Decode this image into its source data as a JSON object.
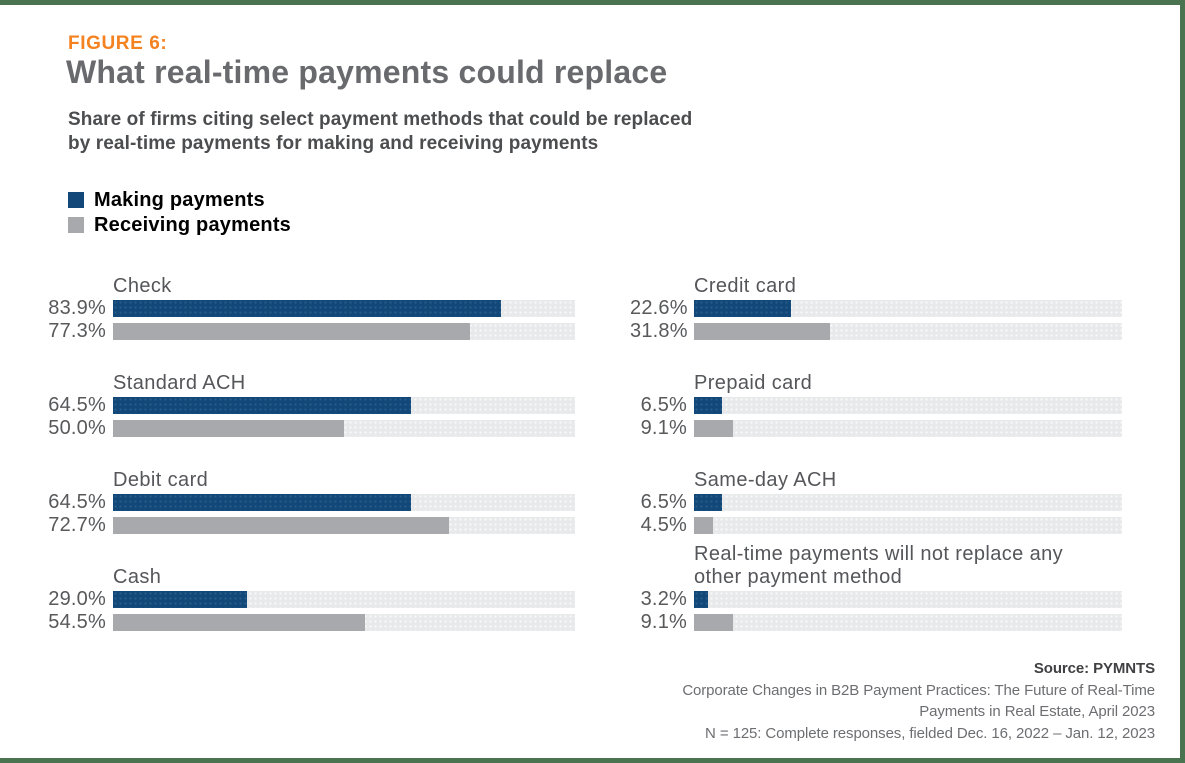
{
  "figure_label": "FIGURE 6:",
  "title": "What real-time payments could replace",
  "subtitle": "Share of firms citing select payment methods that could be replaced\nby real-time payments for making and receiving payments",
  "legend": [
    {
      "label": "Making payments",
      "color": "#114879"
    },
    {
      "label": "Receiving payments",
      "color": "#a7a9ac"
    }
  ],
  "chart_data": {
    "type": "bar",
    "orientation": "horizontal",
    "unit": "%",
    "value_range": [
      0,
      100
    ],
    "series_names": [
      "Making payments",
      "Receiving payments"
    ],
    "series_colors": {
      "making": "#114879",
      "receiving": "#a7a9ac"
    },
    "columns": [
      {
        "groups": [
          {
            "category": "Check",
            "making": 83.9,
            "receiving": 77.3
          },
          {
            "category": "Standard ACH",
            "making": 64.5,
            "receiving": 50.0
          },
          {
            "category": "Debit card",
            "making": 64.5,
            "receiving": 72.7
          },
          {
            "category": "Cash",
            "making": 29.0,
            "receiving": 54.5
          }
        ]
      },
      {
        "groups": [
          {
            "category": "Credit card",
            "making": 22.6,
            "receiving": 31.8
          },
          {
            "category": "Prepaid card",
            "making": 6.5,
            "receiving": 9.1
          },
          {
            "category": "Same-day ACH",
            "making": 6.5,
            "receiving": 4.5
          },
          {
            "category": "Real-time payments will not replace any\nother payment method",
            "making": 3.2,
            "receiving": 9.1
          }
        ]
      }
    ]
  },
  "source": {
    "line1": "Source: PYMNTS",
    "line2": "Corporate Changes in B2B Payment Practices: The Future of Real-Time",
    "line3": "Payments in Real Estate, April 2023",
    "line4": "N = 125: Complete responses, fielded Dec. 16, 2022 – Jan. 12, 2023"
  },
  "colors": {
    "accent_orange": "#f58220",
    "border_green": "#4a7350",
    "title_gray": "#696a6d",
    "text_gray": "#58595b",
    "track_gray": "#e8e9ea"
  }
}
